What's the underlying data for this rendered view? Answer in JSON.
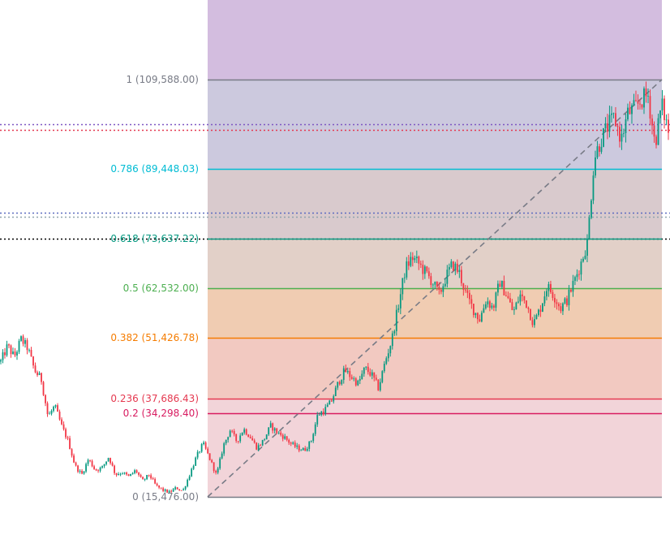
{
  "chart_data": {
    "type": "candlestick",
    "title": "",
    "xlabel": "",
    "ylabel": "",
    "ylim": [
      15476,
      109588
    ],
    "grid": false,
    "fib_zone_colors": [
      "#f2d4d9",
      "#f2d4d9",
      "#f2c9c1",
      "#f0ccb2",
      "#e2d0c8",
      "#d9cacd",
      "#ccc9de",
      "#d6c5da",
      "#e0c4d5",
      "#d3bddf"
    ],
    "fib_levels": [
      {
        "ratio": 0,
        "price": 15476.0,
        "label": "0 (15,476.00)",
        "color": "#787b86"
      },
      {
        "ratio": 0.2,
        "price": 34298.4,
        "label": "0.2 (34,298.40)",
        "color": "#d81b60"
      },
      {
        "ratio": 0.236,
        "price": 37686.43,
        "label": "0.236 (37,686.43)",
        "color": "#e53950"
      },
      {
        "ratio": 0.382,
        "price": 51426.78,
        "label": "0.382 (51,426.78)",
        "color": "#f57c00"
      },
      {
        "ratio": 0.5,
        "price": 62532.0,
        "label": "0.5 (62,532.00)",
        "color": "#4caf50"
      },
      {
        "ratio": 0.618,
        "price": 73637.22,
        "label": "0.618 (73,637.22)",
        "color": "#089981"
      },
      {
        "ratio": 0.786,
        "price": 89448.03,
        "label": "0.786 (89,448.03)",
        "color": "#00bcd4"
      },
      {
        "ratio": 1,
        "price": 109588.0,
        "label": "1 (109,588.00)",
        "color": "#787b86"
      }
    ],
    "horizontal_lines": [
      {
        "price": 99500,
        "color": "#7e57c2",
        "style": "dotted"
      },
      {
        "price": 98300,
        "color": "#e53950",
        "style": "dotted"
      },
      {
        "price": 79500,
        "color": "#5c6bc0",
        "style": "dotted"
      },
      {
        "price": 78700,
        "color": "#90a4ae",
        "style": "dotted"
      },
      {
        "price": 73637,
        "color": "#000000",
        "style": "dotted"
      }
    ],
    "trend_line": {
      "from_price": 15476,
      "to_price": 109588,
      "color": "#787b86",
      "style": "dashed"
    },
    "price_waypoints": [
      46000,
      49500,
      47000,
      51000,
      49000,
      44000,
      42000,
      33500,
      36000,
      31500,
      28000,
      22500,
      20500,
      24000,
      21500,
      22000,
      24500,
      20500,
      21000,
      20000,
      21500,
      19000,
      20500,
      18000,
      17000,
      16500,
      17500,
      16800,
      20500,
      24500,
      27500,
      24000,
      20300,
      27000,
      30500,
      28000,
      30800,
      29000,
      26500,
      28300,
      31500,
      30000,
      29000,
      27500,
      26500,
      26000,
      28000,
      34000,
      35000,
      37000,
      41000,
      44000,
      42500,
      41000,
      44500,
      43000,
      40000,
      46000,
      51000,
      59000,
      67000,
      69500,
      68000,
      66000,
      64000,
      61000,
      65000,
      68000,
      66000,
      61000,
      58000,
      55500,
      60000,
      58000,
      64000,
      61000,
      57000,
      61000,
      59000,
      54500,
      58000,
      63000,
      61000,
      58000,
      60000,
      64000,
      68000,
      73000,
      92000,
      96000,
      99000,
      101000,
      96000,
      102000,
      103000,
      105000,
      106000,
      95000,
      104000,
      98000
    ]
  }
}
